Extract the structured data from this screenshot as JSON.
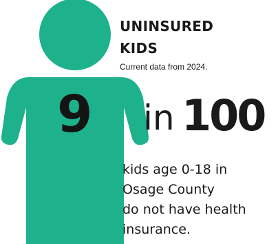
{
  "title_lines": [
    "UNINSURED",
    "KIDS"
  ],
  "subtitle": "Current data from 2024.",
  "stat": {
    "count": "9",
    "connector": "in",
    "total": "100",
    "fraction": 0.09
  },
  "description_lines": [
    "kids age 0-18 in",
    "Osage County",
    "do not have health",
    "insurance."
  ],
  "colors": {
    "figure": "#1eb28c",
    "text": "#1a1a1a"
  },
  "icon": "child-figure-icon"
}
